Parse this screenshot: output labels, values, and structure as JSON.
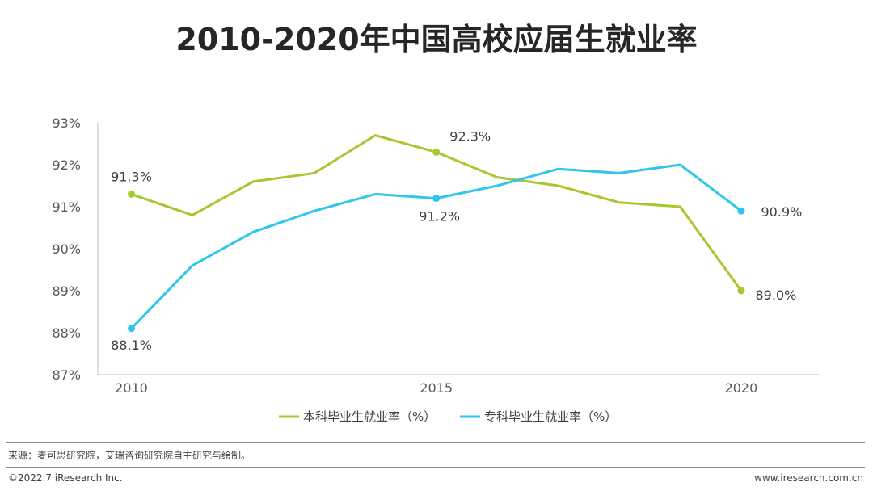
{
  "title": "2010-2020年中国高校应届生就业率",
  "footer": {
    "source": "来源：麦可思研究院，艾瑞咨询研究院自主研究与绘制。",
    "copyright": "©2022.7 iResearch Inc.",
    "website": "www.iresearch.com.cn"
  },
  "chart_data": {
    "type": "line",
    "title": "2010-2020年中国高校应届生就业率",
    "x": [
      2010,
      2011,
      2012,
      2013,
      2014,
      2015,
      2016,
      2017,
      2018,
      2019,
      2020
    ],
    "x_tick_labels": [
      "2010",
      "2015",
      "2020"
    ],
    "x_ticks": [
      2010,
      2015,
      2020
    ],
    "ylim": [
      87,
      93
    ],
    "y_ticks": [
      87,
      88,
      89,
      90,
      91,
      92,
      93
    ],
    "y_tick_labels": [
      "87%",
      "88%",
      "89%",
      "90%",
      "91%",
      "92%",
      "93%"
    ],
    "grid": false,
    "legend_position": "bottom",
    "series": [
      {
        "name": "本科毕业生就业率（%）",
        "color": "#A5C82E",
        "values": [
          91.3,
          90.8,
          91.6,
          91.8,
          92.7,
          92.3,
          91.7,
          91.5,
          91.1,
          91.0,
          89.0
        ],
        "labels": [
          {
            "index": 0,
            "text": "91.3%"
          },
          {
            "index": 5,
            "text": "92.3%"
          },
          {
            "index": 10,
            "text": "89.0%"
          }
        ]
      },
      {
        "name": "专科毕业生就业率（%）",
        "color": "#2EC7EA",
        "values": [
          88.1,
          89.6,
          90.4,
          90.9,
          91.3,
          91.2,
          91.5,
          91.9,
          91.8,
          92.0,
          90.9
        ],
        "labels": [
          {
            "index": 0,
            "text": "88.1%"
          },
          {
            "index": 5,
            "text": "91.2%"
          },
          {
            "index": 10,
            "text": "90.9%"
          }
        ]
      }
    ]
  }
}
